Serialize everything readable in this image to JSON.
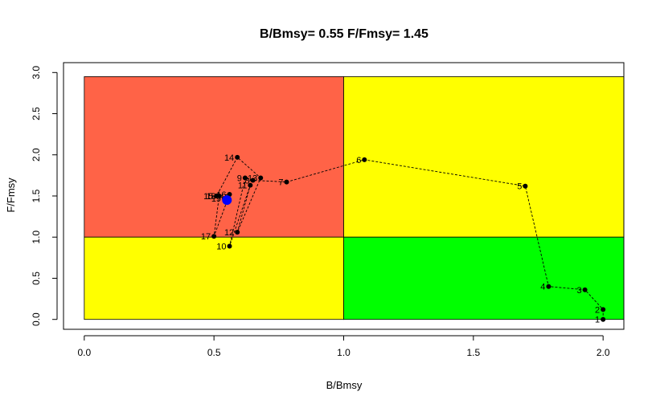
{
  "chart_data": {
    "type": "scatter",
    "title": "B/Bmsy= 0.55  F/Fmsy= 1.45",
    "xlabel": "B/Bmsy",
    "ylabel": "F/Fmsy",
    "xlim": [
      -0.08,
      2.08
    ],
    "ylim": [
      -0.12,
      3.12
    ],
    "x_ticks": [
      "0.0",
      "0.5",
      "1.0",
      "1.5",
      "2.0"
    ],
    "x_tick_values": [
      0,
      0.5,
      1.0,
      1.5,
      2.0
    ],
    "y_ticks": [
      "0.0",
      "0.5",
      "1.0",
      "1.5",
      "2.0",
      "2.5",
      "3.0"
    ],
    "y_tick_values": [
      0,
      0.5,
      1.0,
      1.5,
      2.0,
      2.5,
      3.0
    ],
    "grid": false,
    "zones": [
      {
        "x": [
          0,
          1
        ],
        "y": [
          1,
          2.95
        ],
        "color": "#FF6347"
      },
      {
        "x": [
          1,
          2.1
        ],
        "y": [
          1,
          2.95
        ],
        "color": "#FFFF00"
      },
      {
        "x": [
          0,
          1
        ],
        "y": [
          0,
          1
        ],
        "color": "#FFFF00"
      },
      {
        "x": [
          1,
          2.1
        ],
        "y": [
          0,
          1
        ],
        "color": "#00FF00"
      }
    ],
    "trajectory": {
      "labels": [
        "1",
        "2",
        "3",
        "4",
        "5",
        "6",
        "7",
        "8",
        "9",
        "10",
        "11",
        "12",
        "13",
        "14",
        "15",
        "16",
        "17",
        "18",
        "19"
      ],
      "x": [
        2.0,
        2.0,
        1.93,
        1.79,
        1.7,
        1.08,
        0.78,
        0.65,
        0.62,
        0.56,
        0.64,
        0.59,
        0.68,
        0.59,
        0.51,
        0.56,
        0.5,
        0.52,
        0.54
      ],
      "y": [
        0.0,
        0.12,
        0.36,
        0.4,
        1.62,
        1.94,
        1.67,
        1.69,
        1.72,
        0.89,
        1.63,
        1.06,
        1.72,
        1.97,
        1.5,
        1.52,
        1.01,
        1.5,
        1.47
      ]
    },
    "current": {
      "x": 0.55,
      "y": 1.45,
      "color": "#0000FF"
    }
  }
}
